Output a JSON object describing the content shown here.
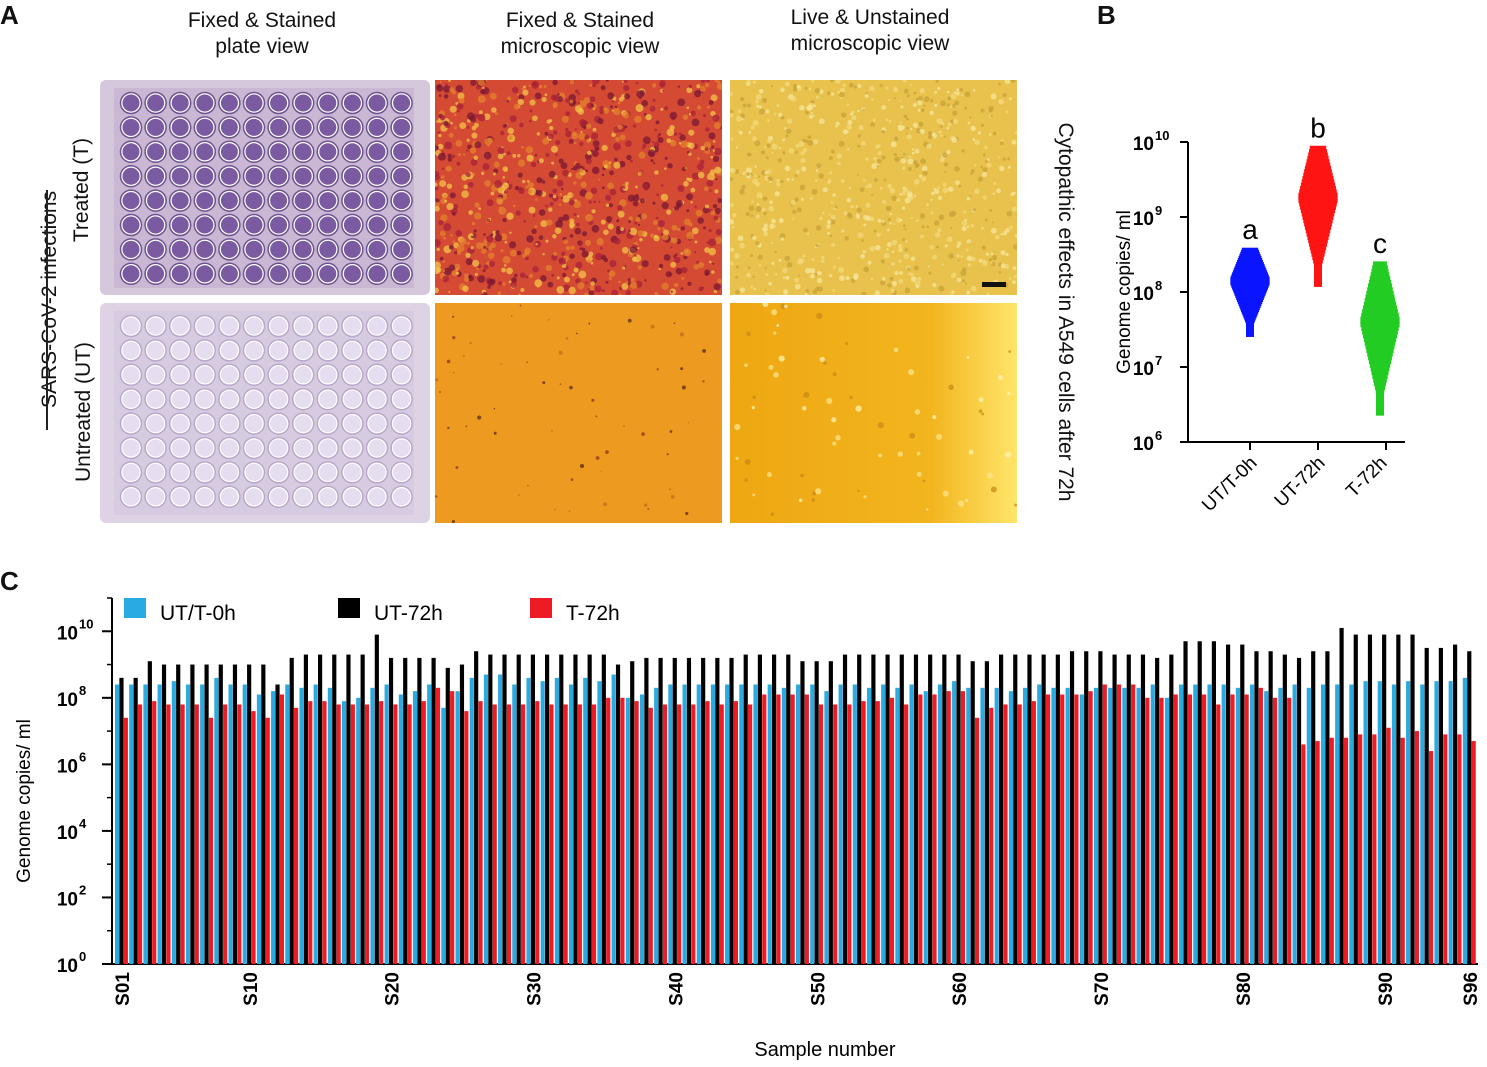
{
  "panel_labels": {
    "a": "A",
    "b": "B",
    "c": "C"
  },
  "panel_a": {
    "col_titles": [
      "Fixed & Stained\nplate view",
      "Fixed & Stained\nmicroscopic view",
      "Live & Unstained\nmicroscopic view"
    ],
    "row_labels": [
      "Treated (T)",
      "Untreated (UT)"
    ],
    "group_label": "SARS-CoV-2 infections",
    "side_label": "Cytopathic effects in A549 cells after 72h",
    "colors": {
      "plate_bg": "#d9ccdf",
      "well_stained": "#7a5aa0",
      "well_unstained": "#e6def0",
      "cpe_fixed_treated": "#c23a2f",
      "cpe_fixed_untreated": "#e8981e",
      "live_treated": "#e7c148",
      "live_untreated": "#f2b21a"
    }
  },
  "chart_data": [
    {
      "type": "scatter",
      "panel": "B",
      "title": "",
      "xlabel": "",
      "ylabel": "Genome copies/ ml",
      "yscale": "log10",
      "ylim": [
        1000000,
        10000000000
      ],
      "ytick_exponents": [
        "6",
        "7",
        "8",
        "9",
        "10"
      ],
      "tick_base": "10",
      "categories": [
        "UT/T-0h",
        "UT-72h",
        "T-72h"
      ],
      "annotations": [
        "a",
        "b",
        "c"
      ],
      "colors": [
        "#0a14ff",
        "#ff1414",
        "#22cc22"
      ],
      "groups": [
        {
          "name": "UT/T-0h",
          "min": 28000000,
          "max": 350000000,
          "median": 140000000
        },
        {
          "name": "UT-72h",
          "min": 130000000,
          "max": 8000000000,
          "median": 1800000000
        },
        {
          "name": "T-72h",
          "min": 2500000,
          "max": 230000000,
          "median": 40000000
        }
      ]
    },
    {
      "type": "bar",
      "panel": "C",
      "title": "",
      "xlabel": "Sample number",
      "ylabel": "Genome copies/ ml",
      "yscale": "log10",
      "ylim": [
        1,
        100000000000
      ],
      "ytick_exponents": [
        "0",
        "2",
        "4",
        "6",
        "8",
        "10"
      ],
      "tick_base": "10",
      "x_tick_labels": [
        "S01",
        "S10",
        "S20",
        "S30",
        "S40",
        "S50",
        "S60",
        "S70",
        "S80",
        "S90",
        "S96"
      ],
      "x_tick_samples": [
        1,
        10,
        20,
        30,
        40,
        50,
        60,
        70,
        80,
        90,
        96
      ],
      "series": [
        {
          "name": "UT/T-0h",
          "color": "#29aae1",
          "log10_values": [
            8.4,
            8.4,
            8.4,
            8.4,
            8.5,
            8.4,
            8.4,
            8.6,
            8.4,
            8.4,
            8.1,
            8.2,
            8.4,
            8.3,
            8.4,
            8.3,
            7.9,
            8.0,
            8.3,
            8.4,
            8.1,
            8.2,
            8.4,
            7.7,
            8.2,
            8.6,
            8.7,
            8.7,
            8.4,
            8.6,
            8.5,
            8.6,
            8.4,
            8.6,
            8.5,
            8.7,
            8.0,
            8.1,
            8.3,
            8.4,
            8.4,
            8.4,
            8.4,
            8.4,
            8.4,
            8.4,
            8.4,
            8.3,
            8.4,
            8.4,
            8.2,
            8.4,
            8.4,
            8.3,
            8.4,
            8.3,
            8.4,
            8.2,
            8.4,
            8.5,
            8.3,
            8.3,
            8.3,
            8.2,
            8.3,
            8.4,
            8.3,
            8.3,
            8.1,
            8.3,
            8.3,
            8.3,
            8.3,
            8.4,
            8.0,
            8.4,
            8.4,
            8.4,
            8.4,
            8.3,
            8.4,
            8.2,
            8.3,
            8.4,
            8.3,
            8.4,
            8.4,
            8.4,
            8.5,
            8.5,
            8.4,
            8.5,
            8.4,
            8.5,
            8.5,
            8.6
          ]
        },
        {
          "name": "UT-72h",
          "color": "#000000",
          "log10_values": [
            8.6,
            8.6,
            9.1,
            9.0,
            9.0,
            9.0,
            9.0,
            9.0,
            9.0,
            9.0,
            9.0,
            8.4,
            9.2,
            9.3,
            9.3,
            9.3,
            9.3,
            9.3,
            9.9,
            9.2,
            9.2,
            9.2,
            9.2,
            8.9,
            9.0,
            9.4,
            9.3,
            9.3,
            9.3,
            9.3,
            9.3,
            9.3,
            9.3,
            9.3,
            9.3,
            9.0,
            9.1,
            9.2,
            9.2,
            9.2,
            9.2,
            9.2,
            9.2,
            9.2,
            9.3,
            9.3,
            9.3,
            9.3,
            9.1,
            9.1,
            9.1,
            9.3,
            9.3,
            9.3,
            9.3,
            9.3,
            9.3,
            9.3,
            9.3,
            9.3,
            9.1,
            9.1,
            9.3,
            9.3,
            9.3,
            9.3,
            9.3,
            9.4,
            9.4,
            9.4,
            9.3,
            9.3,
            9.3,
            9.2,
            9.3,
            9.7,
            9.7,
            9.7,
            9.6,
            9.6,
            9.4,
            9.4,
            9.3,
            9.2,
            9.4,
            9.4,
            10.1,
            9.9,
            9.9,
            9.9,
            9.9,
            9.9,
            9.5,
            9.5,
            9.6,
            9.4
          ]
        },
        {
          "name": "T-72h",
          "color": "#ed1c24",
          "log10_values": [
            7.4,
            7.8,
            7.9,
            7.8,
            7.8,
            7.8,
            7.4,
            7.8,
            7.8,
            7.6,
            7.4,
            8.1,
            7.7,
            7.9,
            7.9,
            7.8,
            7.8,
            7.8,
            7.9,
            7.8,
            7.8,
            7.9,
            8.3,
            8.2,
            7.6,
            7.9,
            7.8,
            7.8,
            7.8,
            7.9,
            7.8,
            7.8,
            7.8,
            7.8,
            8.0,
            8.0,
            7.9,
            7.7,
            7.8,
            7.8,
            7.8,
            7.9,
            7.8,
            7.9,
            7.8,
            8.1,
            8.1,
            8.1,
            8.1,
            7.8,
            7.8,
            7.8,
            7.9,
            7.9,
            8.0,
            7.8,
            8.1,
            8.1,
            8.2,
            8.2,
            7.4,
            7.7,
            7.8,
            7.8,
            7.9,
            8.1,
            8.1,
            8.1,
            8.2,
            8.4,
            8.4,
            8.4,
            8.0,
            8.0,
            8.1,
            8.1,
            8.1,
            7.8,
            8.1,
            8.1,
            8.3,
            8.0,
            8.0,
            6.6,
            6.7,
            6.8,
            6.8,
            6.9,
            6.9,
            7.1,
            6.8,
            7.0,
            6.4,
            6.9,
            6.9,
            6.7
          ]
        }
      ]
    }
  ]
}
